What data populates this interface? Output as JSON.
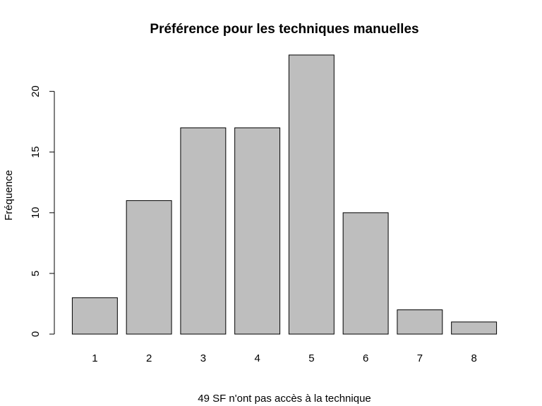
{
  "chart_data": {
    "type": "bar",
    "title": "Préférence pour les techniques manuelles",
    "xlabel": "49 SF n'ont pas accès à la technique",
    "ylabel": "Fréquence",
    "categories": [
      "1",
      "2",
      "3",
      "4",
      "5",
      "6",
      "7",
      "8"
    ],
    "values": [
      3,
      11,
      17,
      17,
      23,
      10,
      2,
      1
    ],
    "ylim": [
      0,
      23
    ],
    "yticks": [
      "0",
      "5",
      "10",
      "15",
      "20"
    ],
    "grid": false,
    "bar_color": "#bebebe",
    "bar_border_color": "#000000"
  }
}
